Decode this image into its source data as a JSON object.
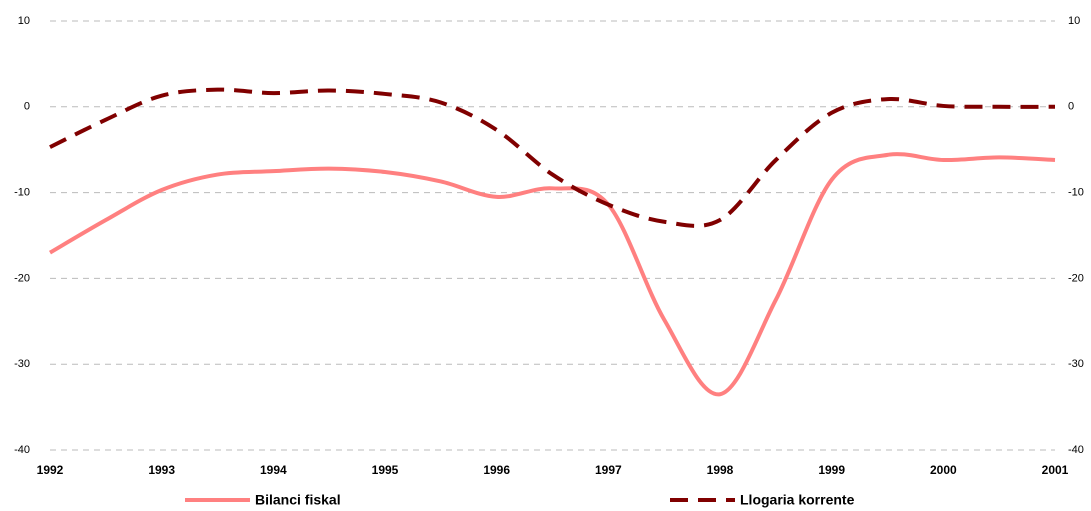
{
  "chart_data": {
    "type": "line",
    "x": [
      1992,
      1992.5,
      1993,
      1993.5,
      1994,
      1994.5,
      1995,
      1995.5,
      1996,
      1996.5,
      1997,
      1997.5,
      1998,
      1998.5,
      1999,
      1999.5,
      2000,
      2000.5,
      2001
    ],
    "series": [
      {
        "name": "Bilanci fiskal",
        "color": "#ff8080",
        "dashed": false,
        "values": [
          -17,
          -13.2,
          -9.7,
          -7.9,
          -7.5,
          -7.2,
          -7.6,
          -8.7,
          -10.5,
          -9.5,
          -11.4,
          -24.8,
          -33.5,
          -22.5,
          -8.5,
          -5.6,
          -6.2,
          -5.9,
          -6.2
        ]
      },
      {
        "name": "Llogaria korrente",
        "color": "#800000",
        "dashed": true,
        "values": [
          -4.7,
          -1.5,
          1.3,
          2,
          1.6,
          1.9,
          1.5,
          0.5,
          -2.7,
          -7.9,
          -11.4,
          -13.4,
          -13.2,
          -6.2,
          -0.7,
          0.9,
          0.1,
          0,
          0
        ]
      }
    ],
    "xlim": [
      1992,
      2001
    ],
    "xticks": [
      1992,
      1993,
      1994,
      1995,
      1996,
      1997,
      1998,
      1999,
      2000,
      2001
    ],
    "ylim": [
      -40,
      10
    ],
    "yticks": [
      -40,
      -30,
      -20,
      -10,
      0,
      10
    ],
    "y2lim": [
      -40,
      10
    ],
    "y2ticks": [
      -40,
      -30,
      -20,
      -10,
      0,
      10
    ],
    "grid": true,
    "legend": "bottom"
  }
}
